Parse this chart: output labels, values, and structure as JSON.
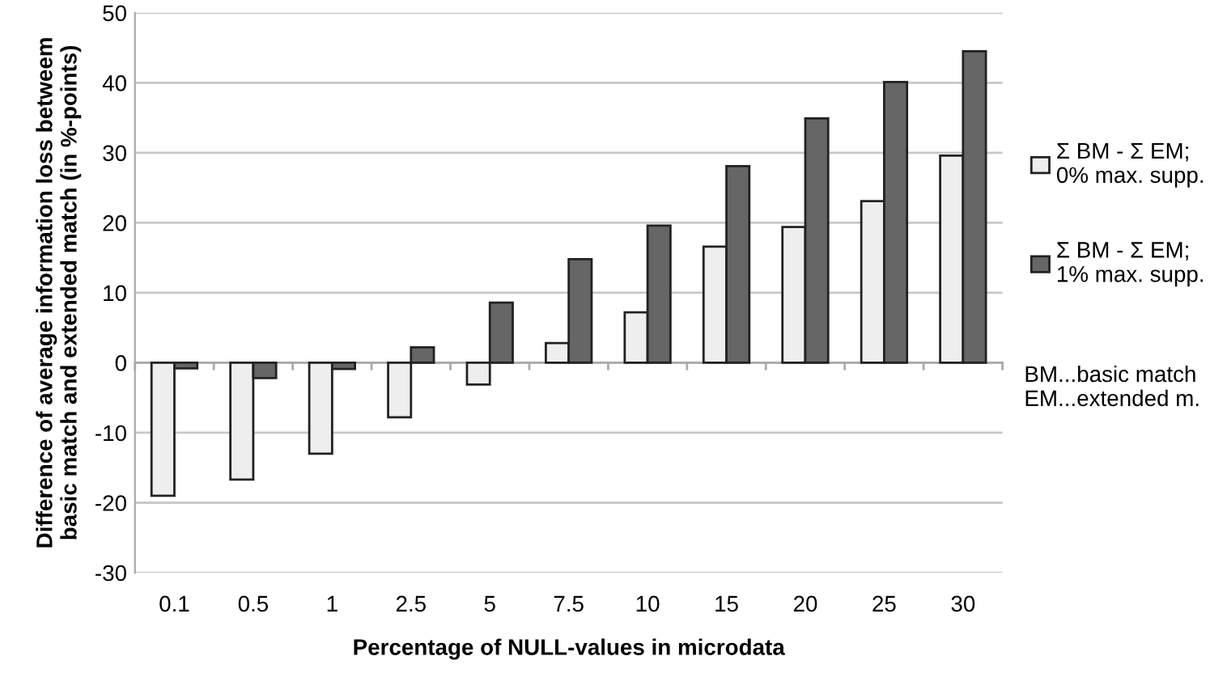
{
  "chart_data": {
    "type": "bar",
    "xlabel": "Percentage of NULL-values in microdata",
    "ylabel": "Difference of average information loss betweem\nbasic match and extended match (in %-points)",
    "categories": [
      "0.1",
      "0.5",
      "1",
      "2.5",
      "5",
      "7.5",
      "10",
      "15",
      "20",
      "25",
      "30"
    ],
    "series": [
      {
        "name": "Σ BM - Σ EM;\n0% max. supp.",
        "color": "#eeeeee",
        "values": [
          -19,
          -16.7,
          -13,
          -7.8,
          -3.1,
          2.8,
          7.2,
          16.6,
          19.4,
          23.1,
          29.6
        ]
      },
      {
        "name": "Σ BM - Σ EM;\n1% max. supp.",
        "color": "#666666",
        "values": [
          -0.8,
          -2.2,
          -0.9,
          2.2,
          8.6,
          14.8,
          19.6,
          28.1,
          34.9,
          40.1,
          44.5
        ]
      }
    ],
    "ylim": [
      -30,
      50
    ],
    "yticks": [
      -30,
      -20,
      -10,
      0,
      10,
      20,
      30,
      40,
      50
    ],
    "grid": "y",
    "legend": "right",
    "annotations": [
      "BM...basic match\nEM...extended m."
    ]
  }
}
